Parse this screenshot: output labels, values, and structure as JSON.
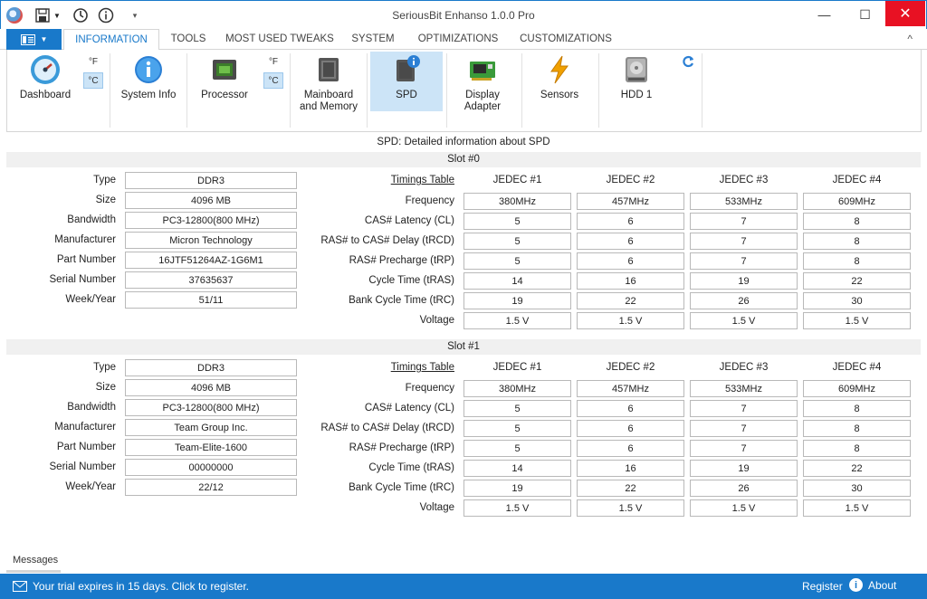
{
  "window": {
    "title": "SeriousBit Enhanso 1.0.0 Pro"
  },
  "menu_button": {
    "icon": "file-menu-icon"
  },
  "tabs": [
    "INFORMATION",
    "TOOLS",
    "MOST USED TWEAKS",
    "SYSTEM",
    "OPTIMIZATIONS",
    "CUSTOMIZATIONS"
  ],
  "ribbon": {
    "dashboard": "Dashboard",
    "system_info": "System Info",
    "processor": "Processor",
    "mainboard_line1": "Mainboard",
    "mainboard_line2": "and Memory",
    "spd": "SPD",
    "display_line1": "Display",
    "display_line2": "Adapter",
    "sensors": "Sensors",
    "hdd": "HDD 1",
    "unit_f": "°F",
    "unit_c": "°C"
  },
  "caption": "SPD: Detailed information about SPD",
  "info_labels": [
    "Type",
    "Size",
    "Bandwidth",
    "Manufacturer",
    "Part Number",
    "Serial Number",
    "Week/Year"
  ],
  "timing_labels": [
    "Frequency",
    "CAS# Latency (CL)",
    "RAS# to CAS# Delay (tRCD)",
    "RAS# Precharge (tRP)",
    "Cycle Time (tRAS)",
    "Bank Cycle Time (tRC)",
    "Voltage"
  ],
  "timing_table_label": "Timings Table",
  "jedec_headers": [
    "JEDEC #1",
    "JEDEC #2",
    "JEDEC #3",
    "JEDEC #4"
  ],
  "slots": [
    {
      "title": "Slot #0",
      "info": [
        "DDR3",
        "4096 MB",
        "PC3-12800(800 MHz)",
        "Micron Technology",
        "16JTF51264AZ-1G6M1",
        "37635637",
        "51/11"
      ],
      "timings": [
        [
          "380MHz",
          "457MHz",
          "533MHz",
          "609MHz"
        ],
        [
          "5",
          "6",
          "7",
          "8"
        ],
        [
          "5",
          "6",
          "7",
          "8"
        ],
        [
          "5",
          "6",
          "7",
          "8"
        ],
        [
          "14",
          "16",
          "19",
          "22"
        ],
        [
          "19",
          "22",
          "26",
          "30"
        ],
        [
          "1.5 V",
          "1.5 V",
          "1.5 V",
          "1.5 V"
        ]
      ]
    },
    {
      "title": "Slot #1",
      "info": [
        "DDR3",
        "4096 MB",
        "PC3-12800(800 MHz)",
        "Team Group Inc.",
        "Team-Elite-1600",
        "00000000",
        "22/12"
      ],
      "timings": [
        [
          "380MHz",
          "457MHz",
          "533MHz",
          "609MHz"
        ],
        [
          "5",
          "6",
          "7",
          "8"
        ],
        [
          "5",
          "6",
          "7",
          "8"
        ],
        [
          "5",
          "6",
          "7",
          "8"
        ],
        [
          "14",
          "16",
          "19",
          "22"
        ],
        [
          "19",
          "22",
          "26",
          "30"
        ],
        [
          "1.5 V",
          "1.5 V",
          "1.5 V",
          "1.5 V"
        ]
      ]
    }
  ],
  "messages_tab": "Messages",
  "status": {
    "trial": "Your trial expires in 15 days. Click to register.",
    "register": "Register",
    "about": "About"
  },
  "colors": {
    "accent": "#1979ca",
    "selected": "#cce4f7",
    "close": "#e81123"
  }
}
